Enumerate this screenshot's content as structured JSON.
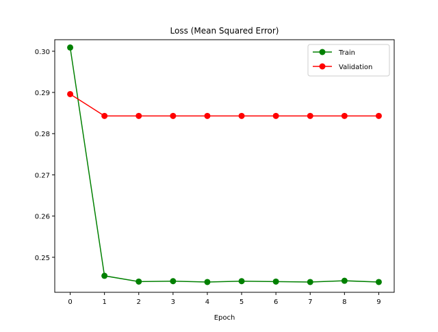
{
  "chart_data": {
    "type": "line",
    "title": "Loss (Mean Squared Error)",
    "xlabel": "Epoch",
    "ylabel": "",
    "x": [
      0,
      1,
      2,
      3,
      4,
      5,
      6,
      7,
      8,
      9
    ],
    "xlim": [
      -0.45,
      9.45
    ],
    "ylim": [
      0.2415,
      0.3028
    ],
    "xticks": [
      0,
      1,
      2,
      3,
      4,
      5,
      6,
      7,
      8,
      9
    ],
    "yticks": [
      0.25,
      0.26,
      0.27,
      0.28,
      0.29,
      0.3
    ],
    "ytick_labels": [
      "0.25",
      "0.26",
      "0.27",
      "0.28",
      "0.29",
      "0.30"
    ],
    "grid": false,
    "legend_position": "top-right",
    "series": [
      {
        "name": "Train",
        "color": "#008000",
        "marker": "circle",
        "values": [
          0.3009,
          0.2455,
          0.2441,
          0.2442,
          0.244,
          0.2442,
          0.2441,
          0.244,
          0.2443,
          0.244
        ]
      },
      {
        "name": "Validation",
        "color": "#ff0000",
        "marker": "circle",
        "values": [
          0.2896,
          0.2843,
          0.2843,
          0.2843,
          0.2843,
          0.2843,
          0.2843,
          0.2843,
          0.2843,
          0.2843
        ]
      }
    ]
  }
}
